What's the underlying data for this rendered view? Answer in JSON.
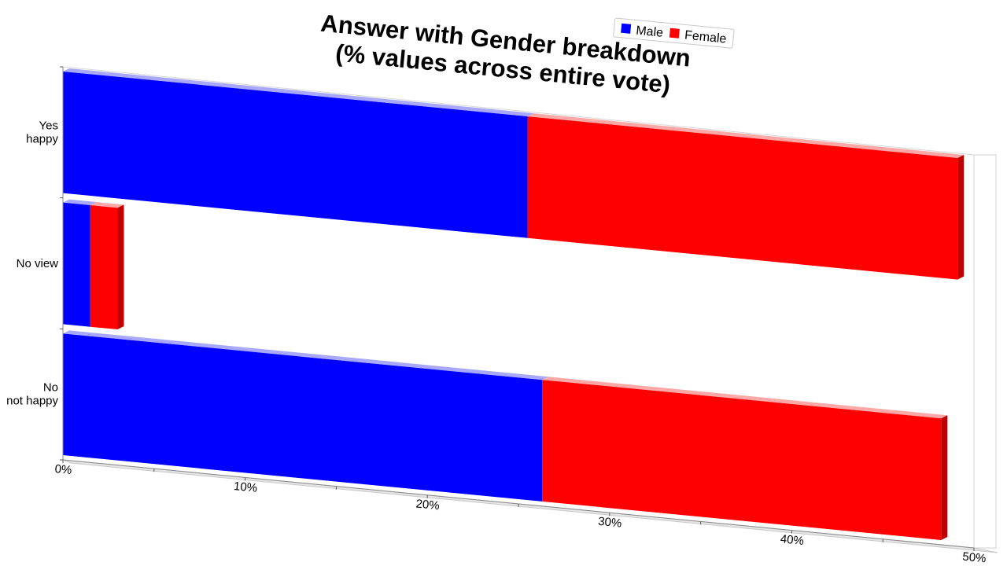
{
  "chart_data": {
    "type": "bar",
    "orientation": "horizontal",
    "stacked": true,
    "title": "Answer with Gender breakdown\n(% values across entire vote)",
    "categories": [
      "Yes\nhappy",
      "No view",
      "No\nnot happy"
    ],
    "series": [
      {
        "name": "Male",
        "color": "#0000ff",
        "values": [
          25.5,
          1.5,
          26.3
        ]
      },
      {
        "name": "Female",
        "color": "#ff0000",
        "values": [
          23.6,
          1.5,
          21.9
        ]
      }
    ],
    "xlim": [
      0,
      50
    ],
    "xticks": [
      "0%",
      "10%",
      "20%",
      "30%",
      "40%",
      "50%"
    ],
    "legend": "top-right",
    "grid": false
  }
}
